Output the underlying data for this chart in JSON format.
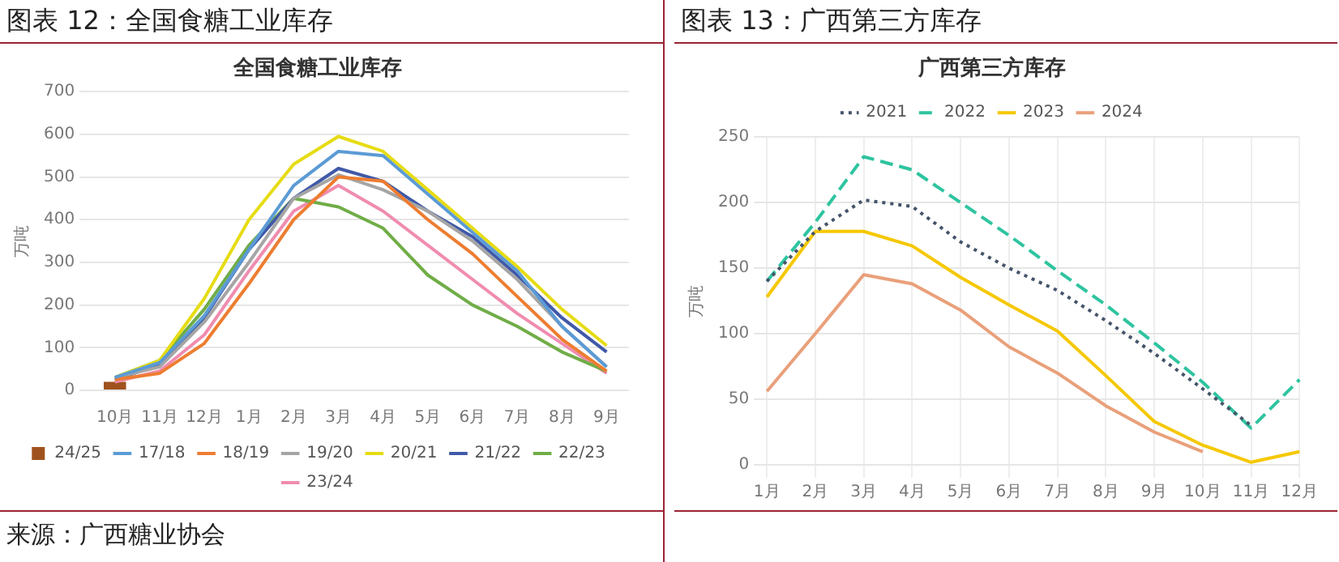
{
  "chart_data": [
    {
      "type": "line",
      "title": "图表 12：全国食糖工业库存",
      "subtitle": "全国食糖工业库存",
      "ylabel": "万吨",
      "categories": [
        "10月",
        "11月",
        "12月",
        "1月",
        "2月",
        "3月",
        "4月",
        "5月",
        "6月",
        "7月",
        "8月",
        "9月"
      ],
      "ylim": [
        0,
        700
      ],
      "yticks": [
        0,
        100,
        200,
        300,
        400,
        500,
        600,
        700
      ],
      "grid": "y",
      "legend": "bottom",
      "marker": "none",
      "annotations": [
        "来源：广西糖业协会"
      ],
      "series": [
        {
          "name": "24/25",
          "type": "bar",
          "color": "#a0521e",
          "values": [
            20,
            null,
            null,
            null,
            null,
            null,
            null,
            null,
            null,
            null,
            null,
            null
          ]
        },
        {
          "name": "17/18",
          "color": "#5b9bd5",
          "values": [
            30,
            65,
            175,
            330,
            480,
            560,
            550,
            460,
            370,
            280,
            150,
            55
          ]
        },
        {
          "name": "18/19",
          "color": "#ed7d31",
          "values": [
            25,
            40,
            110,
            250,
            400,
            500,
            490,
            400,
            320,
            220,
            120,
            45
          ]
        },
        {
          "name": "19/20",
          "color": "#a5a5a5",
          "values": [
            30,
            55,
            160,
            300,
            450,
            505,
            470,
            420,
            350,
            260,
            150,
            55
          ]
        },
        {
          "name": "20/21",
          "color": "#e6dc14",
          "values": [
            30,
            70,
            215,
            400,
            530,
            595,
            560,
            470,
            380,
            290,
            190,
            105
          ]
        },
        {
          "name": "21/22",
          "color": "#4059a8",
          "values": [
            25,
            60,
            170,
            330,
            450,
            520,
            490,
            420,
            360,
            270,
            170,
            90
          ]
        },
        {
          "name": "22/23",
          "color": "#70ad47",
          "values": [
            30,
            70,
            190,
            340,
            450,
            430,
            380,
            270,
            200,
            150,
            90,
            45
          ]
        },
        {
          "name": "23/24",
          "color": "#f08cb0",
          "values": [
            20,
            45,
            130,
            280,
            420,
            480,
            420,
            340,
            260,
            180,
            110,
            40
          ]
        }
      ]
    },
    {
      "type": "line",
      "title": "图表 13：广西第三方库存",
      "subtitle": "广西第三方库存",
      "ylabel": "万吨",
      "categories": [
        "1月",
        "2月",
        "3月",
        "4月",
        "5月",
        "6月",
        "7月",
        "8月",
        "9月",
        "10月",
        "11月",
        "12月"
      ],
      "ylim": [
        0,
        250
      ],
      "yticks": [
        0,
        50,
        100,
        150,
        200,
        250
      ],
      "grid": true,
      "legend": "top",
      "marker": "none",
      "series": [
        {
          "name": "2021",
          "color": "#44546a",
          "line_style": "dotted",
          "values": [
            140,
            178,
            202,
            197,
            170,
            150,
            133,
            110,
            85,
            58,
            30,
            null
          ]
        },
        {
          "name": "2022",
          "color": "#2ec4a0",
          "line_style": "dashed",
          "values": [
            140,
            185,
            235,
            225,
            200,
            175,
            148,
            122,
            93,
            63,
            28,
            65
          ]
        },
        {
          "name": "2023",
          "color": "#f5c800",
          "line_style": "solid",
          "values": [
            128,
            178,
            178,
            167,
            143,
            122,
            102,
            68,
            33,
            15,
            2,
            10
          ]
        },
        {
          "name": "2024",
          "color": "#e9a07a",
          "line_style": "solid",
          "values": [
            56,
            100,
            145,
            138,
            118,
            90,
            70,
            45,
            25,
            10,
            null,
            null
          ]
        }
      ]
    }
  ]
}
